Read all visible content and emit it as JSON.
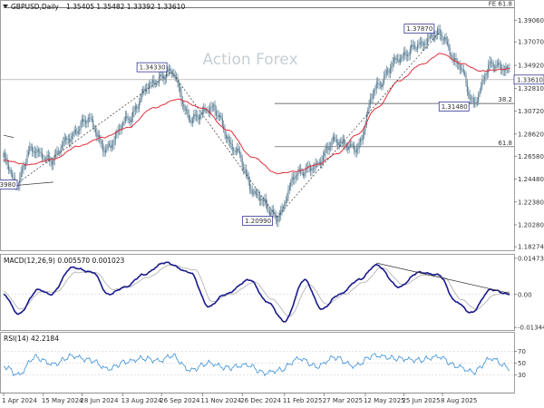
{
  "header": {
    "symbol": "GBPUSD,Daily",
    "ohlc": "1.35405 1.35482 1.33392 1.33610",
    "watermark": "Action Forex"
  },
  "colors": {
    "candle": "#5b7f95",
    "ma": "#e0303c",
    "macd": "#1a1a8c",
    "signal": "#b5b5b5",
    "rsi": "#3a8fd9",
    "box_border": "#1a1a8c",
    "box_text": "#1a1a8c"
  },
  "chart_data": [
    {
      "type": "candlestick",
      "panel": "price",
      "ylim": [
        1.1795,
        1.4075
      ],
      "y_ticks": [
        "1.39060",
        "1.37070",
        "1.34920",
        "1.32810",
        "1.30720",
        "1.28620",
        "1.26580",
        "1.24480",
        "1.22380",
        "1.20280",
        "1.18274"
      ],
      "y_tick_values": [
        1.3906,
        1.3707,
        1.3492,
        1.3281,
        1.3072,
        1.2862,
        1.2658,
        1.2448,
        1.2238,
        1.2028,
        1.18274
      ],
      "current_price": "1.33610",
      "current_price_value": 1.3361,
      "anchors": [
        [
          0,
          1.265
        ],
        [
          10,
          1.24
        ],
        [
          22,
          1.272
        ],
        [
          38,
          1.262
        ],
        [
          52,
          1.282
        ],
        [
          68,
          1.3
        ],
        [
          82,
          1.272
        ],
        [
          100,
          1.3
        ],
        [
          118,
          1.332
        ],
        [
          135,
          1.3433
        ],
        [
          150,
          1.3
        ],
        [
          168,
          1.31
        ],
        [
          186,
          1.272
        ],
        [
          203,
          1.23
        ],
        [
          220,
          1.2099
        ],
        [
          236,
          1.25
        ],
        [
          250,
          1.256
        ],
        [
          266,
          1.28
        ],
        [
          284,
          1.273
        ],
        [
          300,
          1.33
        ],
        [
          317,
          1.355
        ],
        [
          334,
          1.368
        ],
        [
          350,
          1.3787
        ],
        [
          366,
          1.35
        ],
        [
          378,
          1.3148
        ],
        [
          392,
          1.35
        ],
        [
          407,
          1.345
        ]
      ],
      "ma_anchors": [
        [
          0,
          1.262
        ],
        [
          20,
          1.258
        ],
        [
          40,
          1.263
        ],
        [
          60,
          1.275
        ],
        [
          80,
          1.283
        ],
        [
          100,
          1.292
        ],
        [
          120,
          1.31
        ],
        [
          140,
          1.318
        ],
        [
          160,
          1.31
        ],
        [
          180,
          1.29
        ],
        [
          200,
          1.265
        ],
        [
          220,
          1.25
        ],
        [
          236,
          1.252
        ],
        [
          252,
          1.258
        ],
        [
          268,
          1.268
        ],
        [
          285,
          1.286
        ],
        [
          300,
          1.31
        ],
        [
          318,
          1.335
        ],
        [
          336,
          1.35
        ],
        [
          352,
          1.36
        ],
        [
          368,
          1.351
        ],
        [
          384,
          1.344
        ],
        [
          407,
          1.346
        ]
      ],
      "callouts": [
        {
          "text": "1.34330",
          "bar": 135,
          "value": 1.3433,
          "side": "above"
        },
        {
          "text": "1.20990",
          "bar": 220,
          "value": 1.2099,
          "side": "below"
        },
        {
          "text": "1.37870",
          "bar": 350,
          "value": 1.3787,
          "side": "above"
        },
        {
          "text": "1.31480",
          "bar": 378,
          "value": 1.3148,
          "side": "below"
        },
        {
          "text": "1.23980",
          "bar": 10,
          "value": 1.2398,
          "side": "cut-left"
        }
      ],
      "fib_levels": [
        {
          "label": "FE 61.8",
          "value": 1.4021,
          "from_bar": 0
        },
        {
          "label": "38.2",
          "value": 1.3142,
          "from_bar": 218
        },
        {
          "label": "61.8",
          "value": 1.2745,
          "from_bar": 218
        }
      ],
      "trendlines": [
        {
          "style": "dashed",
          "from": [
            10,
            1.24
          ],
          "to": [
            135,
            1.3433
          ]
        },
        {
          "style": "dashed",
          "from": [
            135,
            1.3433
          ],
          "to": [
            220,
            1.2099
          ]
        },
        {
          "style": "dashed",
          "from": [
            220,
            1.2099
          ],
          "to": [
            350,
            1.3787
          ]
        },
        {
          "style": "solid",
          "from": [
            0,
            1.285
          ],
          "to": [
            8,
            1.283
          ]
        },
        {
          "style": "solid",
          "from": [
            0,
            1.238
          ],
          "to": [
            40,
            1.242
          ]
        }
      ]
    },
    {
      "type": "line",
      "panel": "macd",
      "title": "MACD(12,26,9) 0.005570 0.001023",
      "ylim": [
        -0.0145,
        0.0158
      ],
      "y_ticks": [
        "0.014734",
        "0.00",
        "-0.013442"
      ],
      "y_tick_values": [
        0.014734,
        0.0,
        -0.013442
      ],
      "series": [
        {
          "name": "MACD",
          "anchors": [
            [
              0,
              0.0
            ],
            [
              12,
              -0.008
            ],
            [
              28,
              0.002
            ],
            [
              38,
              0.0
            ],
            [
              55,
              0.011
            ],
            [
              72,
              0.009
            ],
            [
              84,
              0.0
            ],
            [
              98,
              0.003
            ],
            [
              112,
              0.008
            ],
            [
              130,
              0.013
            ],
            [
              150,
              0.009
            ],
            [
              165,
              -0.005
            ],
            [
              178,
              0.0
            ],
            [
              198,
              0.006
            ],
            [
              212,
              -0.003
            ],
            [
              226,
              -0.011
            ],
            [
              242,
              0.006
            ],
            [
              256,
              -0.006
            ],
            [
              270,
              0.0
            ],
            [
              286,
              0.006
            ],
            [
              300,
              0.012
            ],
            [
              318,
              0.003
            ],
            [
              334,
              0.009
            ],
            [
              350,
              0.008
            ],
            [
              364,
              -0.003
            ],
            [
              376,
              -0.0075
            ],
            [
              392,
              0.002
            ],
            [
              407,
              0.0
            ]
          ]
        },
        {
          "name": "Signal",
          "anchors": [
            [
              0,
              0.001
            ],
            [
              14,
              -0.006
            ],
            [
              30,
              0.001
            ],
            [
              42,
              0.001
            ],
            [
              58,
              0.009
            ],
            [
              74,
              0.009
            ],
            [
              88,
              0.002
            ],
            [
              100,
              0.003
            ],
            [
              116,
              0.007
            ],
            [
              134,
              0.012
            ],
            [
              154,
              0.01
            ],
            [
              168,
              -0.003
            ],
            [
              182,
              0.0
            ],
            [
              202,
              0.005
            ],
            [
              216,
              -0.002
            ],
            [
              230,
              -0.009
            ],
            [
              246,
              0.004
            ],
            [
              260,
              -0.004
            ],
            [
              274,
              0.0
            ],
            [
              290,
              0.005
            ],
            [
              304,
              0.011
            ],
            [
              322,
              0.004
            ],
            [
              338,
              0.008
            ],
            [
              354,
              0.007
            ],
            [
              368,
              -0.002
            ],
            [
              380,
              -0.006
            ],
            [
              396,
              0.0
            ],
            [
              407,
              0.001
            ]
          ]
        }
      ],
      "trendlines": [
        {
          "style": "solid",
          "from": [
            300,
            0.0128
          ],
          "to": [
            407,
            0.0005
          ]
        }
      ]
    },
    {
      "type": "line",
      "panel": "rsi",
      "title": "RSI(14) 42.2184",
      "ylim": [
        0,
        100
      ],
      "y_ticks": [
        "70",
        "50",
        "30"
      ],
      "y_tick_values": [
        70,
        50,
        30
      ],
      "series": [
        {
          "name": "RSI",
          "anchors": [
            [
              0,
              45
            ],
            [
              12,
              30
            ],
            [
              25,
              60
            ],
            [
              40,
              48
            ],
            [
              55,
              62
            ],
            [
              70,
              55
            ],
            [
              84,
              40
            ],
            [
              98,
              52
            ],
            [
              112,
              58
            ],
            [
              126,
              54
            ],
            [
              135,
              63
            ],
            [
              150,
              38
            ],
            [
              165,
              50
            ],
            [
              180,
              42
            ],
            [
              196,
              47
            ],
            [
              210,
              33
            ],
            [
              222,
              38
            ],
            [
              238,
              58
            ],
            [
              252,
              44
            ],
            [
              266,
              60
            ],
            [
              282,
              45
            ],
            [
              298,
              63
            ],
            [
              316,
              58
            ],
            [
              334,
              55
            ],
            [
              350,
              61
            ],
            [
              364,
              45
            ],
            [
              378,
              35
            ],
            [
              392,
              58
            ],
            [
              407,
              42
            ]
          ]
        }
      ]
    }
  ],
  "x_axis": {
    "ticks": [
      {
        "label": "1 Apr 2024",
        "bar": 0
      },
      {
        "label": "15 May 2024",
        "bar": 32
      },
      {
        "label": "28 Jun 2024",
        "bar": 63
      },
      {
        "label": "13 Aug 2024",
        "bar": 96
      },
      {
        "label": "26 Sep 2024",
        "bar": 127
      },
      {
        "label": "11 Nov 2024",
        "bar": 160
      },
      {
        "label": "26 Dec 2024",
        "bar": 192
      },
      {
        "label": "11 Feb 2025",
        "bar": 226
      },
      {
        "label": "27 Mar 2025",
        "bar": 258
      },
      {
        "label": "12 May 2025",
        "bar": 291
      },
      {
        "label": "25 Jun 2025",
        "bar": 322
      },
      {
        "label": "8 Aug 2025",
        "bar": 353
      }
    ],
    "bar_count": 408
  }
}
